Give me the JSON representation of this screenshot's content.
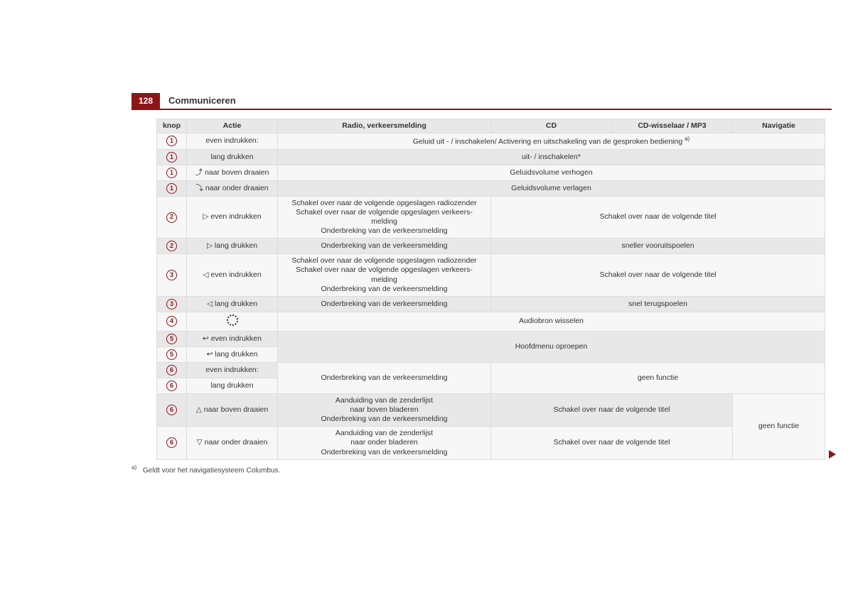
{
  "header": {
    "page_number": "128",
    "section": "Communiceren"
  },
  "columns": {
    "knop": "knop",
    "actie": "Actie",
    "radio": "Radio, verkeersmelding",
    "cd": "CD",
    "cdw": "CD-wisselaar / MP3",
    "nav": "Navigatie"
  },
  "knop_labels": {
    "k1": "1",
    "k2": "2",
    "k3": "3",
    "k4": "4",
    "k5": "5",
    "k6": "6"
  },
  "actions": {
    "r1": "even indrukken:",
    "r2": "lang drukken",
    "r3_icon": "⤴",
    "r3": " naar boven draaien",
    "r4_icon": "⤵",
    "r4": " naar onder draaien",
    "r5_icon": "▷",
    "r5": " even indrukken",
    "r6_icon": "▷",
    "r6": " lang drukken",
    "r7_icon": "◁",
    "r7": " even indrukken",
    "r8_icon": "◁",
    "r8": " lang drukken",
    "r10_icon": "↩",
    "r10": " even indrukken",
    "r11_icon": "↩",
    "r11": " lang drukken",
    "r12": "even indrukken:",
    "r13": "lang drukken",
    "r14_icon": "△",
    "r14": " naar boven draaien",
    "r15_icon": "▽",
    "r15": " naar onder draaien"
  },
  "cells": {
    "r1_main": "Geluid uit - / inschakelen/ Activering en uitschakeling van de gesproken bediening ",
    "r1_sup": "a)",
    "r2_main": "uit- / inschakelen*",
    "r3_main": "Geluidsvolume verhogen",
    "r4_main": "Geluidsvolume verlagen",
    "r5_radio_l1": "Schakel over naar de volgende opgeslagen radiozender",
    "r5_radio_l2": "Schakel over naar de volgende opgeslagen verkeers-",
    "r5_radio_l3": "melding",
    "r5_radio_l4": "Onderbreking van de verkeersmelding",
    "r5_cd": "Schakel over naar de volgende titel",
    "r6_radio": "Onderbreking van de verkeersmelding",
    "r6_cd": "sneller vooruitspoelen",
    "r7_radio_l1": "Schakel over naar de volgende opgeslagen radiozender",
    "r7_radio_l2": "Schakel over naar de volgende opgeslagen verkeers-",
    "r7_radio_l3": "melding",
    "r7_radio_l4": "Onderbreking van de verkeersmelding",
    "r7_cd": "Schakel over naar de volgende titel",
    "r8_radio": "Onderbreking van de verkeersmelding",
    "r8_cd": "snel terugspoelen",
    "r9_main": "Audiobron wisselen",
    "r10_main": "Hoofdmenu oproepen",
    "r12_radio": "Onderbreking van de verkeersmelding",
    "r12_cd": "geen functie",
    "r14_radio_l1": "Aanduiding van de zenderlijst",
    "r14_radio_l2": "naar boven bladeren",
    "r14_radio_l3": "Onderbreking van de verkeersmelding",
    "r14_cd": "Schakel over naar de volgende titel",
    "r14_nav": "geen functie",
    "r15_radio_l1": "Aanduiding van de zenderlijst",
    "r15_radio_l2": "naar onder bladeren",
    "r15_radio_l3": "Onderbreking van de verkeersmelding",
    "r15_cd": "Schakel over naar de volgende titel"
  },
  "footnote": {
    "mark": "a)",
    "text": "Geldt voor het navigatiesysteem Columbus."
  },
  "colors": {
    "brand": "#8c1515",
    "header_bg": "#e8e8e8",
    "row_light": "#f7f7f7",
    "border": "#dddddd"
  }
}
